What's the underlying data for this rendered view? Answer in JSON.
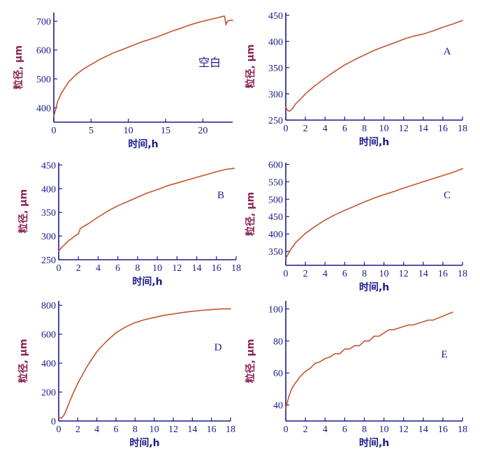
{
  "colors": {
    "axis": "#1a1a8c",
    "ylabel": "#8b2252",
    "curve": "#c4532f"
  },
  "chart_data": [
    {
      "type": "line",
      "panel_label": "空白",
      "xlabel": "时间,h",
      "ylabel": "粒径, μm",
      "xlim": [
        0,
        24
      ],
      "ylim": [
        350,
        730
      ],
      "xticks": [
        0,
        5,
        10,
        15,
        20
      ],
      "yticks": [
        400,
        500,
        600,
        700
      ],
      "series": [
        {
          "x": [
            0,
            0.5,
            1,
            2,
            3,
            4,
            5,
            6,
            7,
            8,
            9,
            10,
            11,
            12,
            13,
            14,
            15,
            16,
            17,
            18,
            19,
            20,
            21,
            22,
            22.5,
            22.9,
            23.1,
            23.3,
            23.6,
            24
          ],
          "values": [
            370,
            420,
            450,
            490,
            515,
            535,
            550,
            565,
            578,
            590,
            600,
            610,
            620,
            630,
            638,
            647,
            657,
            667,
            675,
            685,
            693,
            700,
            706,
            712,
            716,
            718,
            688,
            700,
            703,
            703
          ]
        }
      ]
    },
    {
      "type": "line",
      "panel_label": "A",
      "xlabel": "时间,h",
      "ylabel": "粒径, μm",
      "xlim": [
        0,
        18
      ],
      "ylim": [
        250,
        455
      ],
      "xticks": [
        0,
        2,
        4,
        6,
        8,
        10,
        12,
        14,
        16,
        18
      ],
      "yticks": [
        250,
        300,
        350,
        400,
        450
      ],
      "series": [
        {
          "x": [
            0,
            0.2,
            0.4,
            0.6,
            0.8,
            1,
            1.5,
            2,
            3,
            4,
            5,
            6,
            7,
            8,
            9,
            10,
            11,
            12,
            13,
            14,
            15,
            16,
            17,
            18
          ],
          "values": [
            275,
            268,
            267,
            270,
            275,
            281,
            290,
            300,
            316,
            330,
            343,
            355,
            365,
            374,
            383,
            390,
            397,
            404,
            410,
            414,
            420,
            427,
            433,
            440
          ]
        }
      ]
    },
    {
      "type": "line",
      "panel_label": "B",
      "xlabel": "时间,h",
      "ylabel": "粒径, μm",
      "xlim": [
        0,
        18
      ],
      "ylim": [
        250,
        455
      ],
      "xticks": [
        0,
        2,
        4,
        6,
        8,
        10,
        12,
        14,
        16,
        18
      ],
      "yticks": [
        250,
        300,
        350,
        400,
        450
      ],
      "series": [
        {
          "x": [
            0,
            0.3,
            0.6,
            1,
            1.5,
            2,
            2.2,
            2.5,
            3,
            4,
            5,
            6,
            7,
            8,
            9,
            10,
            11,
            12,
            13,
            14,
            15,
            16,
            17,
            17.8
          ],
          "values": [
            268,
            276,
            282,
            290,
            298,
            305,
            316,
            320,
            326,
            340,
            353,
            364,
            373,
            382,
            391,
            398,
            406,
            412,
            418,
            424,
            430,
            436,
            441,
            443
          ]
        }
      ]
    },
    {
      "type": "line",
      "panel_label": "C",
      "xlabel": "时间,h",
      "ylabel": "粒径, μm",
      "xlim": [
        0,
        18
      ],
      "ylim": [
        310,
        605
      ],
      "xticks": [
        0,
        2,
        4,
        6,
        8,
        10,
        12,
        14,
        16,
        18
      ],
      "yticks": [
        350,
        400,
        450,
        500,
        550,
        600
      ],
      "series": [
        {
          "x": [
            0,
            0.5,
            1,
            2,
            3,
            4,
            5,
            6,
            7,
            8,
            9,
            10,
            11,
            12,
            13,
            14,
            15,
            16,
            17,
            18
          ],
          "values": [
            330,
            355,
            375,
            402,
            422,
            440,
            455,
            468,
            480,
            492,
            503,
            513,
            522,
            532,
            541,
            550,
            559,
            568,
            577,
            588
          ]
        }
      ]
    },
    {
      "type": "line",
      "panel_label": "D",
      "xlabel": "时间,h",
      "ylabel": "粒径, μm",
      "xlim": [
        0,
        18
      ],
      "ylim": [
        0,
        830
      ],
      "xticks": [
        0,
        2,
        4,
        6,
        8,
        10,
        12,
        14,
        16,
        18
      ],
      "yticks": [
        0,
        200,
        400,
        600,
        800
      ],
      "series": [
        {
          "x": [
            0,
            0.3,
            0.6,
            1,
            1.5,
            2,
            3,
            4,
            5,
            6,
            7,
            8,
            9,
            10,
            11,
            12,
            13,
            14,
            15,
            16,
            17,
            18
          ],
          "values": [
            25,
            20,
            45,
            110,
            190,
            260,
            380,
            480,
            550,
            610,
            650,
            680,
            700,
            715,
            730,
            740,
            750,
            758,
            765,
            770,
            775,
            775
          ]
        }
      ]
    },
    {
      "type": "line",
      "panel_label": "E",
      "xlabel": "时间,h",
      "ylabel": "粒径, μm",
      "xlim": [
        0,
        18
      ],
      "ylim": [
        30,
        105
      ],
      "xticks": [
        0,
        2,
        4,
        6,
        8,
        10,
        12,
        14,
        16,
        18
      ],
      "yticks": [
        40,
        60,
        80,
        100
      ],
      "series": [
        {
          "x": [
            0,
            0.3,
            0.6,
            1,
            1.5,
            2,
            2.5,
            3,
            3.5,
            4,
            4.5,
            5,
            5.5,
            6,
            6.5,
            7,
            7.5,
            8,
            8.5,
            9,
            9.5,
            10.5,
            11,
            12.5,
            13,
            14.5,
            15,
            17
          ],
          "values": [
            38,
            45,
            50,
            54,
            58,
            61,
            63,
            66,
            67,
            69,
            70,
            72,
            72,
            75,
            75,
            77,
            77,
            80,
            80,
            83,
            83,
            87,
            87,
            90,
            90,
            93,
            93,
            98
          ]
        }
      ]
    }
  ]
}
